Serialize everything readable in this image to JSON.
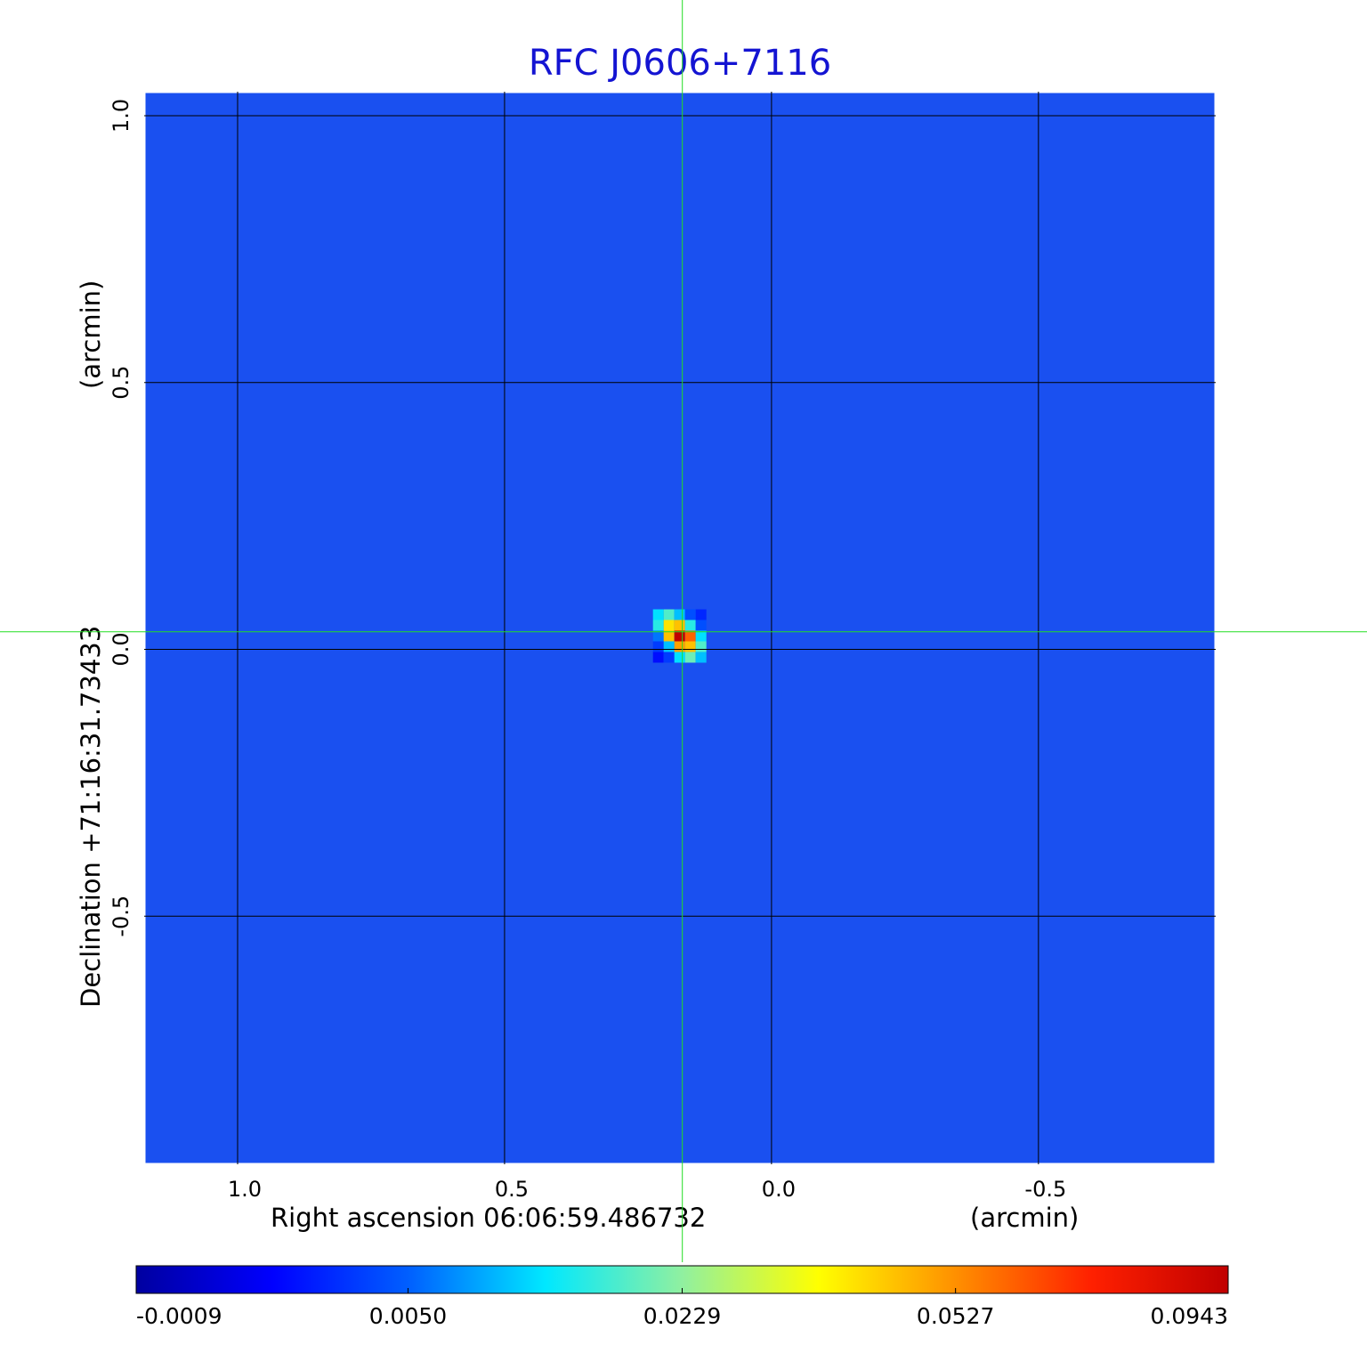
{
  "chart_data": {
    "type": "image",
    "title": "RFC J0606+7116",
    "xlabel": "Right ascension  06:06:59.486732",
    "xunit": "(arcmin)",
    "ylabel": "Declination  +71:16:31.73433",
    "yunit": "(arcmin)",
    "xlim": [
      1.175,
      -0.832
    ],
    "ylim": [
      -0.965,
      1.045
    ],
    "xticks": [
      {
        "value": 1,
        "label": "1.0"
      },
      0.5,
      {
        "value": 0,
        "label": "0.0"
      },
      -0.5
    ],
    "yticks": [
      {
        "value": 1,
        "label": "1.0"
      },
      0.5,
      {
        "value": 0,
        "label": "0.0"
      },
      -0.5
    ],
    "grid": true,
    "crosshair": {
      "x": 0.167,
      "y": 0.033,
      "color": "#22dd22"
    },
    "colormap": [
      "#0000a0",
      "#0000ff",
      "#0060ff",
      "#00e8ff",
      "#90f0a0",
      "#ffff00",
      "#ff9000",
      "#ff2000",
      "#c00000"
    ],
    "colorbar_scale": "sqrt",
    "colorbar_lim": [
      -0.0009,
      0.0943
    ],
    "colorbar_ticks": [
      -0.0009,
      {
        "value": 0.005,
        "label": "0.0050"
      },
      0.0229,
      0.0527,
      0.0943
    ],
    "pixels": {
      "x": [
        0.212,
        0.192,
        0.172,
        0.152,
        0.132,
        0.212,
        0.192,
        0.172,
        0.152,
        0.132,
        0.212,
        0.192,
        0.172,
        0.152,
        0.132,
        0.212,
        0.192,
        0.172,
        0.152,
        0.132,
        0.212,
        0.192,
        0.172,
        0.152,
        0.132
      ],
      "y": [
        0.065,
        0.065,
        0.065,
        0.065,
        0.065,
        0.045,
        0.045,
        0.045,
        0.045,
        0.045,
        0.025,
        0.025,
        0.025,
        0.025,
        0.025,
        0.005,
        0.005,
        0.005,
        0.005,
        0.005,
        -0.015,
        -0.015,
        -0.015,
        -0.015,
        -0.015
      ],
      "values": [
        0.012,
        0.018,
        0.01,
        0.004,
        0.002,
        0.015,
        0.04,
        0.045,
        0.015,
        0.004,
        0.006,
        0.045,
        0.0943,
        0.06,
        0.012,
        0.003,
        0.01,
        0.05,
        0.045,
        0.018,
        0.001,
        0.003,
        0.012,
        0.02,
        0.01
      ]
    }
  }
}
